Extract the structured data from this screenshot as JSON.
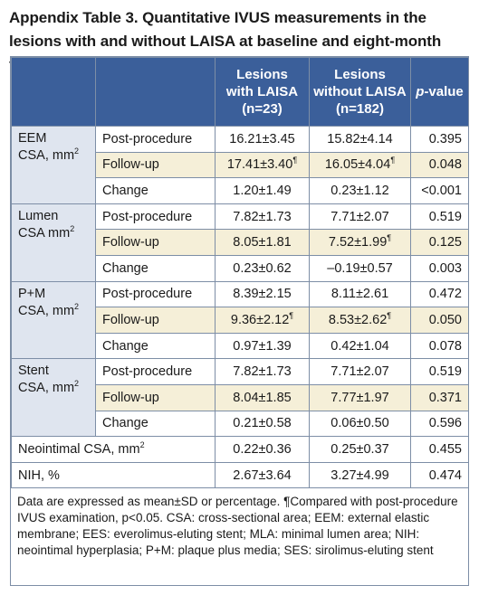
{
  "title": "Appendix Table 3. Quantitative IVUS measurements in the lesions with and without LAISA at baseline and eight-month follow-up.",
  "header": {
    "col1_line1": "Lesions",
    "col1_line2": "with LAISA",
    "col1_line3": "(n=23)",
    "col2_line1": "Lesions",
    "col2_line2": "without LAISA",
    "col2_line3": "(n=182)",
    "pvalue_p": "p",
    "pvalue_rest": "-value"
  },
  "groups": [
    {
      "name_line1": "EEM",
      "name_line2": "CSA, mm",
      "name_sup": "2",
      "rows": [
        {
          "label": "Post-procedure",
          "with": "16.21±3.45",
          "with_mark": "",
          "without": "15.82±4.14",
          "without_mark": "",
          "p": "0.395"
        },
        {
          "label": "Follow-up",
          "with": "17.41±3.40",
          "with_mark": "¶",
          "without": "16.05±4.04",
          "without_mark": "¶",
          "p": "0.048"
        },
        {
          "label": "Change",
          "with": "1.20±1.49",
          "with_mark": "",
          "without": "0.23±1.12",
          "without_mark": "",
          "p": "<0.001"
        }
      ]
    },
    {
      "name_line1": "Lumen",
      "name_line2": "CSA mm",
      "name_sup": "2",
      "rows": [
        {
          "label": "Post-procedure",
          "with": "7.82±1.73",
          "with_mark": "",
          "without": "7.71±2.07",
          "without_mark": "",
          "p": "0.519"
        },
        {
          "label": "Follow-up",
          "with": "8.05±1.81",
          "with_mark": "",
          "without": "7.52±1.99",
          "without_mark": "¶",
          "p": "0.125"
        },
        {
          "label": "Change",
          "with": "0.23±0.62",
          "with_mark": "",
          "without": "–0.19±0.57",
          "without_mark": "",
          "p": "0.003"
        }
      ]
    },
    {
      "name_line1": "P+M",
      "name_line2": "CSA, mm",
      "name_sup": "2",
      "rows": [
        {
          "label": "Post-procedure",
          "with": "8.39±2.15",
          "with_mark": "",
          "without": "8.11±2.61",
          "without_mark": "",
          "p": "0.472"
        },
        {
          "label": "Follow-up",
          "with": "9.36±2.12",
          "with_mark": "¶",
          "without": "8.53±2.62",
          "without_mark": "¶",
          "p": "0.050"
        },
        {
          "label": "Change",
          "with": "0.97±1.39",
          "with_mark": "",
          "without": "0.42±1.04",
          "without_mark": "",
          "p": "0.078"
        }
      ]
    },
    {
      "name_line1": "Stent",
      "name_line2": "CSA, mm",
      "name_sup": "2",
      "rows": [
        {
          "label": "Post-procedure",
          "with": "7.82±1.73",
          "with_mark": "",
          "without": "7.71±2.07",
          "without_mark": "",
          "p": "0.519"
        },
        {
          "label": "Follow-up",
          "with": "8.04±1.85",
          "with_mark": "",
          "without": "7.77±1.97",
          "without_mark": "",
          "p": "0.371"
        },
        {
          "label": "Change",
          "with": "0.21±0.58",
          "with_mark": "",
          "without": "0.06±0.50",
          "without_mark": "",
          "p": "0.596"
        }
      ]
    }
  ],
  "single_rows": [
    {
      "label": "Neointimal CSA, mm",
      "label_sup": "2",
      "with": "0.22±0.36",
      "without": "0.25±0.37",
      "p": "0.455"
    },
    {
      "label": "NIH, %",
      "label_sup": "",
      "with": "2.67±3.64",
      "without": "3.27±4.99",
      "p": "0.474"
    }
  ],
  "footnote": "Data are expressed as mean±SD or percentage. ¶Compared with post-procedure IVUS examination, p<0.05. CSA: cross-sectional area; EEM: external elastic membrane; EES: everolimus-eluting stent; MLA: minimal lumen area; NIH: neointimal hyperplasia; P+M: plaque plus media; SES: sirolimus-eluting stent",
  "colors": {
    "header_bg": "#3b5f9a",
    "group_bg": "#dfe5ef",
    "shade_bg": "#f5efd8",
    "border": "#7d8ea6"
  }
}
